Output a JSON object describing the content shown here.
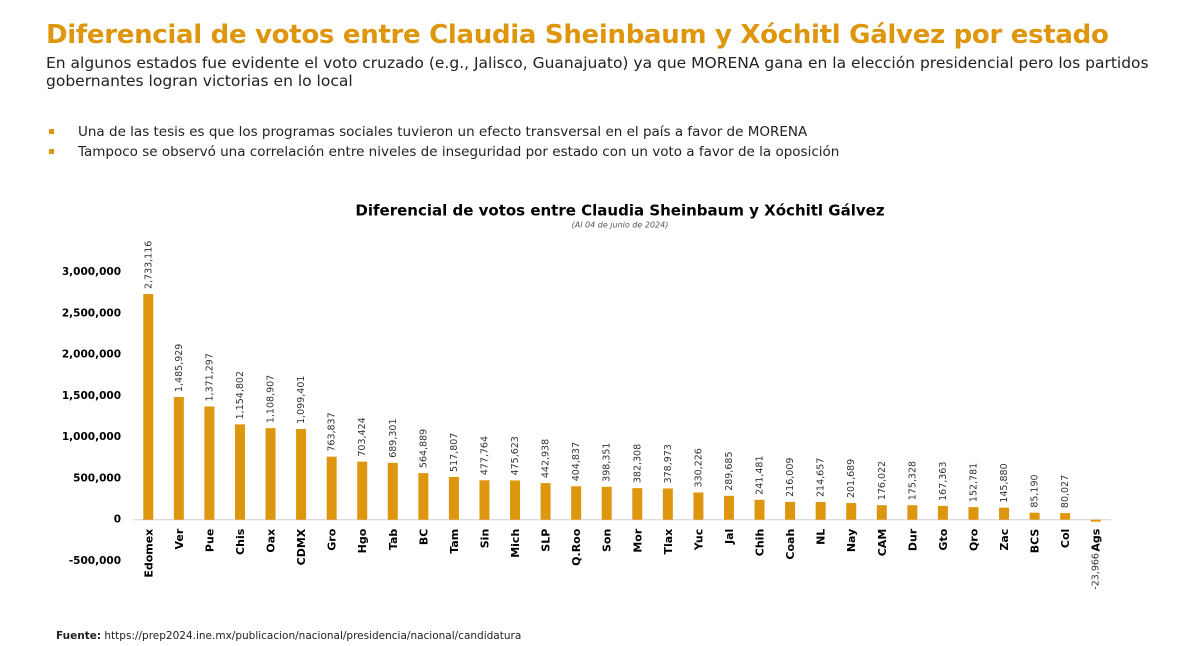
{
  "header": {
    "title": "Diferencial de votos entre Claudia Sheinbaum y Xóchitl Gálvez por estado",
    "subtitle": "En algunos estados fue evidente el voto cruzado (e.g., Jalisco, Guanajuato) ya que MORENA gana en la elección presidencial pero los partidos gobernantes logran victorias en lo local"
  },
  "bullets": [
    "Una de las tesis es que los programas sociales tuvieron un efecto transversal en el país a favor de MORENA",
    "Tampoco se observó una correlación entre niveles de inseguridad por estado con un voto a favor de la oposición"
  ],
  "source": {
    "label": "Fuente:",
    "url": "https://prep2024.ine.mx/publicacion/nacional/presidencia/nacional/candidatura"
  },
  "chart_data": {
    "type": "bar",
    "title": "Diferencial de votos entre Claudia Sheinbaum y Xóchitl Gálvez",
    "subtitle": "(Al 04 de junio de 2024)",
    "color": "#DE960F",
    "categories": [
      "Edomex",
      "Ver",
      "Pue",
      "Chis",
      "Oax",
      "CDMX",
      "Gro",
      "Hgo",
      "Tab",
      "BC",
      "Tam",
      "Sin",
      "Mich",
      "SLP",
      "Q.Roo",
      "Son",
      "Mor",
      "Tlax",
      "Yuc",
      "Jal",
      "Chih",
      "Coah",
      "NL",
      "Nay",
      "CAM",
      "Dur",
      "Gto",
      "Qro",
      "Zac",
      "BCS",
      "Col",
      "Ags"
    ],
    "values": [
      2733116,
      1485929,
      1371297,
      1154802,
      1108907,
      1099401,
      763837,
      703424,
      689301,
      564889,
      517807,
      477764,
      475623,
      442938,
      404837,
      398351,
      382308,
      378973,
      330226,
      289685,
      241481,
      216009,
      214657,
      201689,
      176022,
      175328,
      167363,
      152781,
      145880,
      85190,
      80027,
      -23966
    ],
    "value_labels": [
      "2,733,116",
      "1,485,929",
      "1,371,297",
      "1,154,802",
      "1,108,907",
      "1,099,401",
      "763,837",
      "703,424",
      "689,301",
      "564,889",
      "517,807",
      "477,764",
      "475,623",
      "442,938",
      "404,837",
      "398,351",
      "382,308",
      "378,973",
      "330,226",
      "289,685",
      "241,481",
      "216,009",
      "214,657",
      "201,689",
      "176,022",
      "175,328",
      "167,363",
      "152,781",
      "145,880",
      "85,190",
      "80,027",
      "-23,966"
    ],
    "ylim": [
      -500000,
      3000000
    ],
    "yticks": [
      {
        "value": -500000,
        "label": "-500,000"
      },
      0,
      {
        "value": 500000,
        "label": "500,000"
      },
      {
        "value": 1000000,
        "label": "1,000,000"
      },
      {
        "value": 1500000,
        "label": "1,500,000"
      },
      {
        "value": 2000000,
        "label": "2,000,000"
      },
      {
        "value": 2500000,
        "label": "2,500,000"
      },
      {
        "value": 3000000,
        "label": "3,000,000"
      }
    ],
    "grid": false
  }
}
